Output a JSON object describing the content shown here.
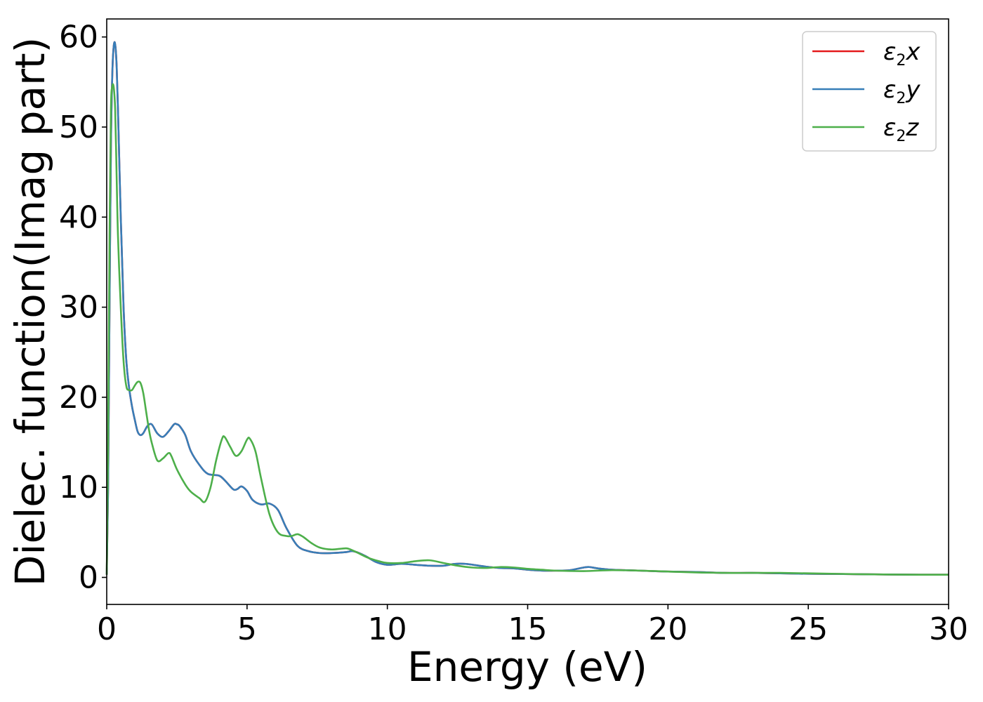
{
  "chart_data": {
    "type": "line",
    "title": "",
    "xlabel": "Energy (eV)",
    "ylabel": "Dielec. function(Imag part)",
    "xlim": [
      0,
      30
    ],
    "ylim": [
      -3,
      62
    ],
    "xticks": [
      0,
      5,
      10,
      15,
      20,
      25,
      30
    ],
    "yticks": [
      0,
      10,
      20,
      30,
      40,
      50,
      60
    ],
    "grid": false,
    "legend": "top-right",
    "series": [
      {
        "name": "ε2x",
        "legend_base": "ε",
        "legend_sub": "2",
        "legend_suffix": "x",
        "color": "#e41a1c",
        "x": [
          0,
          0.05,
          0.1,
          0.15,
          0.2,
          0.25,
          0.3,
          0.35,
          0.4,
          0.5,
          0.6,
          0.7,
          0.8,
          0.9,
          1.0,
          1.1,
          1.2,
          1.3,
          1.45,
          1.6,
          1.8,
          2.0,
          2.2,
          2.4,
          2.5,
          2.6,
          2.8,
          3.0,
          3.3,
          3.6,
          4.0,
          4.2,
          4.5,
          4.65,
          4.8,
          5.0,
          5.2,
          5.5,
          5.8,
          6.1,
          6.4,
          6.8,
          7.2,
          7.6,
          8.0,
          8.5,
          8.8,
          9.2,
          9.6,
          10.0,
          10.5,
          11.0,
          11.5,
          12.0,
          12.4,
          12.8,
          13.5,
          14.0,
          14.5,
          15.0,
          15.5,
          16.0,
          16.5,
          17.0,
          17.2,
          17.5,
          18.0,
          18.5,
          19.0,
          20.0,
          21.0,
          22.0,
          23.0,
          24.0,
          25.0,
          26.0,
          27.0,
          28.0,
          29.0,
          30.0
        ],
        "y": [
          0.3,
          10,
          30,
          48,
          56,
          59,
          59.2,
          57,
          52,
          40,
          30,
          24,
          21,
          19,
          17.5,
          16.2,
          15.8,
          16.0,
          16.8,
          17.0,
          16.0,
          15.6,
          16.2,
          17.0,
          17.0,
          16.8,
          15.8,
          14.0,
          12.5,
          11.5,
          11.3,
          10.8,
          9.8,
          9.8,
          10.1,
          9.6,
          8.6,
          8.1,
          8.2,
          7.5,
          5.5,
          3.5,
          2.9,
          2.7,
          2.7,
          2.8,
          2.9,
          2.4,
          1.7,
          1.4,
          1.5,
          1.4,
          1.3,
          1.3,
          1.5,
          1.5,
          1.2,
          1.05,
          1.0,
          0.85,
          0.75,
          0.75,
          0.8,
          1.1,
          1.15,
          1.0,
          0.85,
          0.8,
          0.75,
          0.65,
          0.6,
          0.5,
          0.5,
          0.45,
          0.4,
          0.38,
          0.35,
          0.32,
          0.3,
          0.3
        ]
      },
      {
        "name": "ε2y",
        "legend_base": "ε",
        "legend_sub": "2",
        "legend_suffix": "y",
        "color": "#377eb8",
        "x": [
          0,
          0.05,
          0.1,
          0.15,
          0.2,
          0.25,
          0.3,
          0.35,
          0.4,
          0.5,
          0.6,
          0.7,
          0.8,
          0.9,
          1.0,
          1.1,
          1.2,
          1.3,
          1.45,
          1.6,
          1.8,
          2.0,
          2.2,
          2.4,
          2.5,
          2.6,
          2.8,
          3.0,
          3.3,
          3.6,
          4.0,
          4.2,
          4.5,
          4.65,
          4.8,
          5.0,
          5.2,
          5.5,
          5.8,
          6.1,
          6.4,
          6.8,
          7.2,
          7.6,
          8.0,
          8.5,
          8.8,
          9.2,
          9.6,
          10.0,
          10.5,
          11.0,
          11.5,
          12.0,
          12.4,
          12.8,
          13.5,
          14.0,
          14.5,
          15.0,
          15.5,
          16.0,
          16.5,
          17.0,
          17.2,
          17.5,
          18.0,
          18.5,
          19.0,
          20.0,
          21.0,
          22.0,
          23.0,
          24.0,
          25.0,
          26.0,
          27.0,
          28.0,
          29.0,
          30.0
        ],
        "y": [
          0.3,
          10,
          30,
          48,
          56,
          59,
          59.2,
          57,
          52,
          40,
          30,
          24,
          21,
          19,
          17.5,
          16.2,
          15.8,
          16.0,
          16.8,
          17.0,
          16.0,
          15.6,
          16.2,
          17.0,
          17.0,
          16.8,
          15.8,
          14.0,
          12.5,
          11.5,
          11.3,
          10.8,
          9.8,
          9.8,
          10.1,
          9.6,
          8.6,
          8.1,
          8.2,
          7.5,
          5.5,
          3.5,
          2.9,
          2.7,
          2.7,
          2.8,
          2.9,
          2.4,
          1.7,
          1.4,
          1.5,
          1.4,
          1.3,
          1.3,
          1.5,
          1.5,
          1.2,
          1.05,
          1.0,
          0.85,
          0.75,
          0.75,
          0.8,
          1.1,
          1.15,
          1.0,
          0.85,
          0.8,
          0.75,
          0.65,
          0.6,
          0.5,
          0.5,
          0.45,
          0.4,
          0.38,
          0.35,
          0.32,
          0.3,
          0.3
        ]
      },
      {
        "name": "ε2z",
        "legend_base": "ε",
        "legend_sub": "2",
        "legend_suffix": "z",
        "color": "#4daf4a",
        "x": [
          0,
          0.05,
          0.1,
          0.15,
          0.2,
          0.25,
          0.3,
          0.35,
          0.4,
          0.5,
          0.6,
          0.7,
          0.8,
          0.9,
          1.0,
          1.1,
          1.2,
          1.3,
          1.4,
          1.5,
          1.6,
          1.8,
          2.0,
          2.2,
          2.3,
          2.5,
          2.8,
          3.0,
          3.3,
          3.5,
          3.7,
          3.9,
          4.1,
          4.2,
          4.4,
          4.6,
          4.8,
          5.0,
          5.1,
          5.3,
          5.5,
          5.8,
          6.1,
          6.4,
          6.6,
          6.8,
          7.0,
          7.3,
          7.6,
          8.0,
          8.4,
          8.6,
          8.9,
          9.3,
          9.7,
          10.0,
          10.5,
          11.0,
          11.5,
          12.0,
          12.5,
          13.0,
          13.5,
          14.0,
          14.5,
          15.0,
          15.5,
          16.0,
          17.0,
          18.0,
          19.0,
          20.0,
          21.0,
          22.0,
          23.0,
          24.0,
          25.0,
          26.0,
          27.0,
          28.0,
          29.0,
          30.0
        ],
        "y": [
          0.3,
          15,
          38,
          52,
          54.5,
          54.4,
          52,
          45,
          38,
          30,
          24,
          21.2,
          20.8,
          20.8,
          21.3,
          21.7,
          21.6,
          20.5,
          18.5,
          16.5,
          15.0,
          13.0,
          13.2,
          13.8,
          13.5,
          12.0,
          10.3,
          9.5,
          8.8,
          8.4,
          10.0,
          13.0,
          15.3,
          15.6,
          14.5,
          13.5,
          14.0,
          15.3,
          15.4,
          14.0,
          11.0,
          7.0,
          5.0,
          4.6,
          4.6,
          4.8,
          4.5,
          3.8,
          3.3,
          3.1,
          3.2,
          3.2,
          2.8,
          2.2,
          1.8,
          1.6,
          1.6,
          1.8,
          1.9,
          1.6,
          1.3,
          1.1,
          1.05,
          1.15,
          1.1,
          0.95,
          0.85,
          0.75,
          0.7,
          0.8,
          0.75,
          0.65,
          0.55,
          0.5,
          0.5,
          0.5,
          0.45,
          0.4,
          0.35,
          0.32,
          0.3,
          0.3
        ]
      }
    ]
  }
}
